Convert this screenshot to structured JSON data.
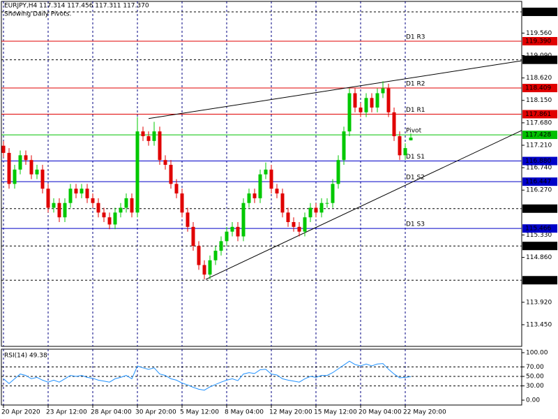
{
  "chart_data": [
    {
      "type": "candlestick",
      "title": "EURJPY,H4  117.314 117.456 117.311 117.370",
      "subtitle": "Showing Daily Pivots.",
      "xlim": [
        -0.375,
        92.875
      ],
      "xticks": [
        {
          "value": 0,
          "label": "20 Apr 2020"
        },
        {
          "value": 8,
          "label": "23 Apr 12:00"
        },
        {
          "value": 16,
          "label": "28 Apr 04:00"
        },
        {
          "value": 24,
          "label": "30 Apr 20:00"
        },
        {
          "value": 32,
          "label": "5 May 12:00"
        },
        {
          "value": 40,
          "label": "8 May 04:00"
        },
        {
          "value": 48,
          "label": "12 May 20:00"
        },
        {
          "value": 56,
          "label": "15 May 12:00"
        },
        {
          "value": 64,
          "label": "20 May 04:00"
        },
        {
          "value": 72,
          "label": "22 May 20:00"
        }
      ],
      "ylim": [
        112.996,
        120.224
      ],
      "yticks": [
        {
          "value": 119.56,
          "label": "119.560"
        },
        {
          "value": 119.09,
          "label": "119.090"
        },
        {
          "value": 118.62,
          "label": "118.620"
        },
        {
          "value": 118.15,
          "label": "118.150"
        },
        {
          "value": 117.68,
          "label": "117.680"
        },
        {
          "value": 117.21,
          "label": "117.210"
        },
        {
          "value": 116.74,
          "label": "116.740"
        },
        {
          "value": 116.27,
          "label": "116.270"
        },
        {
          "value": 115.33,
          "label": "115.330"
        },
        {
          "value": 114.86,
          "label": "114.860"
        },
        {
          "value": 113.92,
          "label": "113.920"
        },
        {
          "value": 113.45,
          "label": "113.450"
        }
      ],
      "grid": true,
      "up_color": "#00c800",
      "down_color": "#e00000",
      "open": [
        117.2,
        117.05,
        116.4,
        116.7,
        117.0,
        116.9,
        116.6,
        116.7,
        116.3,
        115.9,
        116.0,
        115.7,
        116.0,
        116.3,
        116.2,
        116.3,
        116.1,
        116.0,
        115.8,
        115.7,
        115.55,
        115.8,
        115.9,
        116.1,
        115.8,
        117.5,
        117.4,
        117.3,
        117.5,
        116.9,
        116.8,
        116.4,
        116.2,
        115.8,
        115.5,
        115.1,
        114.7,
        114.5,
        114.8,
        115.0,
        115.2,
        115.4,
        115.5,
        115.3,
        116.0,
        116.2,
        116.1,
        116.6,
        116.7,
        116.3,
        116.2,
        115.8,
        115.6,
        115.5,
        115.4,
        115.7,
        115.9,
        115.8,
        116.0,
        116.0,
        116.4,
        116.9,
        117.5,
        118.3,
        118.0,
        117.9,
        118.2,
        118.0,
        118.3,
        118.4,
        117.9,
        117.4,
        117.0,
        117.314
      ],
      "high": [
        117.3,
        117.15,
        116.8,
        117.1,
        117.1,
        117.0,
        116.8,
        116.8,
        116.4,
        116.1,
        116.1,
        116.1,
        116.4,
        116.4,
        116.4,
        116.4,
        116.2,
        116.1,
        115.9,
        115.8,
        115.9,
        116.0,
        116.2,
        116.2,
        117.8,
        117.6,
        117.5,
        117.7,
        117.6,
        117.0,
        116.9,
        116.5,
        116.3,
        115.9,
        115.6,
        115.2,
        114.8,
        114.9,
        115.1,
        115.3,
        115.5,
        115.6,
        115.6,
        116.1,
        116.3,
        116.3,
        116.7,
        116.85,
        116.8,
        116.4,
        116.3,
        115.9,
        115.7,
        115.6,
        115.8,
        116.0,
        116.0,
        116.1,
        116.1,
        116.5,
        117.0,
        117.6,
        118.4,
        118.4,
        118.1,
        118.3,
        118.3,
        118.4,
        118.55,
        118.5,
        118.0,
        117.5,
        117.25,
        117.456
      ],
      "low": [
        116.95,
        116.3,
        116.3,
        116.6,
        116.8,
        116.5,
        116.5,
        116.2,
        115.8,
        115.8,
        115.6,
        115.6,
        115.9,
        116.1,
        116.1,
        116.0,
        115.9,
        115.7,
        115.6,
        115.45,
        115.45,
        115.7,
        115.8,
        115.7,
        115.7,
        117.3,
        117.2,
        117.2,
        116.8,
        116.7,
        116.3,
        116.1,
        115.7,
        115.4,
        115.0,
        114.6,
        114.4,
        114.4,
        114.7,
        114.9,
        115.1,
        115.3,
        115.2,
        115.2,
        115.9,
        116.0,
        116.0,
        116.5,
        116.2,
        116.1,
        115.7,
        115.5,
        115.4,
        115.3,
        115.3,
        115.6,
        115.7,
        115.7,
        115.9,
        115.9,
        116.3,
        116.8,
        117.4,
        117.9,
        117.8,
        117.8,
        117.9,
        117.9,
        118.2,
        117.8,
        117.3,
        116.9,
        116.9,
        117.311
      ],
      "close": [
        117.05,
        116.4,
        116.7,
        117.0,
        116.9,
        116.6,
        116.7,
        116.3,
        115.9,
        116.0,
        115.7,
        116.0,
        116.3,
        116.2,
        116.3,
        116.1,
        116.0,
        115.8,
        115.7,
        115.55,
        115.8,
        115.9,
        116.1,
        115.8,
        117.5,
        117.4,
        117.3,
        117.5,
        116.9,
        116.8,
        116.4,
        116.2,
        115.8,
        115.5,
        115.1,
        114.7,
        114.5,
        114.8,
        115.0,
        115.2,
        115.4,
        115.5,
        115.3,
        116.0,
        116.2,
        116.1,
        116.6,
        116.7,
        116.3,
        116.2,
        115.8,
        115.6,
        115.5,
        115.4,
        115.7,
        115.9,
        115.8,
        116.0,
        116.0,
        116.4,
        116.9,
        117.5,
        118.3,
        118.0,
        117.9,
        118.2,
        118.0,
        118.3,
        118.4,
        117.9,
        117.4,
        117.0,
        117.15,
        117.37
      ],
      "levels": [
        {
          "value": 120.005,
          "label": "120.005",
          "color": "#000000",
          "dashed": true
        },
        {
          "name": "D1 R3",
          "value": 119.39,
          "label": "119.390",
          "color": "#e00000"
        },
        {
          "value": 119.0,
          "label": "119.000",
          "color": "#000000",
          "dashed": true
        },
        {
          "name": "D1 R2",
          "value": 118.409,
          "label": "118.409",
          "color": "#e00000"
        },
        {
          "name": "D1 R1",
          "value": 117.861,
          "label": "117.861",
          "color": "#e00000"
        },
        {
          "name": "Pivot",
          "value": 117.428,
          "label": "117.428",
          "color": "#00c000"
        },
        {
          "name": "D1 S1",
          "value": 116.88,
          "label": "116.880",
          "color": "#0000c8"
        },
        {
          "name": "D1 S2",
          "value": 116.447,
          "label": "116.447",
          "color": "#0000c8"
        },
        {
          "value": 115.882,
          "label": "115.882",
          "color": "#000000",
          "dashed": true
        },
        {
          "name": "D1 S3",
          "value": 115.466,
          "label": "115.466",
          "color": "#0000c8"
        },
        {
          "value": 115.1,
          "label": "115.100",
          "color": "#000000",
          "dashed": true
        },
        {
          "value": 114.382,
          "label": "114.382",
          "color": "#000000",
          "dashed": true
        }
      ],
      "trendlines": [
        {
          "x": [
            26,
            92.875
          ],
          "y": [
            117.77,
            118.98
          ]
        },
        {
          "x": [
            36.25,
            92.875
          ],
          "y": [
            114.4,
            117.52
          ]
        }
      ]
    },
    {
      "type": "line",
      "title": "RSI(14) 49.38",
      "color": "#1e90ff",
      "ylim": [
        -10.3,
        107.35
      ],
      "yticks": [
        {
          "value": 100,
          "label": "100.00"
        },
        {
          "value": 70,
          "label": "70.00"
        },
        {
          "value": 50,
          "label": "50.00"
        },
        {
          "value": 30,
          "label": "30.00"
        },
        {
          "value": 0,
          "label": "0.00"
        }
      ],
      "levels": [
        70,
        50,
        30
      ],
      "values": [
        45,
        35,
        45,
        55,
        52,
        45,
        48,
        42,
        38,
        42,
        38,
        45,
        52,
        50,
        52,
        48,
        46,
        42,
        40,
        38,
        45,
        48,
        52,
        45,
        72,
        68,
        65,
        68,
        55,
        52,
        45,
        42,
        36,
        32,
        27,
        23,
        21,
        28,
        33,
        38,
        42,
        45,
        41,
        55,
        58,
        56,
        64,
        65,
        55,
        53,
        45,
        42,
        40,
        38,
        45,
        50,
        48,
        52,
        52,
        58,
        66,
        74,
        82,
        75,
        72,
        76,
        72,
        76,
        77,
        65,
        55,
        47,
        48,
        49.38
      ]
    }
  ]
}
